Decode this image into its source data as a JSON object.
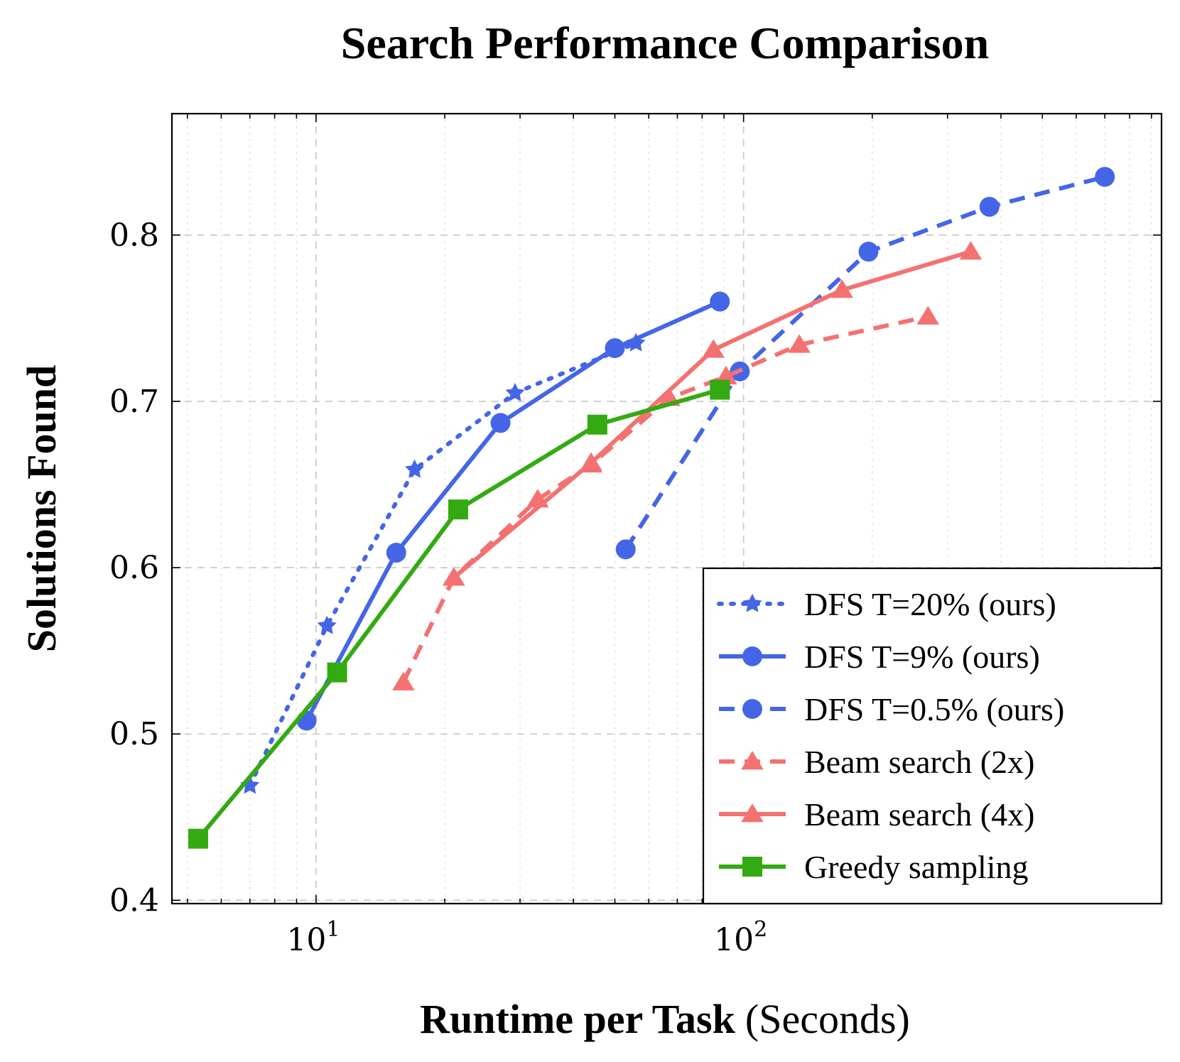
{
  "chart_data": {
    "type": "line",
    "title": "Search Performance Comparison",
    "xlabel_bold": "Runtime per Task",
    "xlabel_normal": "(Seconds)",
    "ylabel": "Solutions Found",
    "x_scale": "log",
    "xlim": [
      4.6,
      950
    ],
    "ylim": [
      0.398,
      0.873
    ],
    "x_ticks": [
      {
        "value": 10,
        "base": "10",
        "exp": "1"
      },
      {
        "value": 100,
        "base": "10",
        "exp": "2"
      }
    ],
    "y_ticks": [
      {
        "value": 0.4,
        "label": "0.4"
      },
      {
        "value": 0.5,
        "label": "0.5"
      },
      {
        "value": 0.6,
        "label": "0.6"
      },
      {
        "value": 0.7,
        "label": "0.7"
      },
      {
        "value": 0.8,
        "label": "0.8"
      }
    ],
    "grid": true,
    "legend_position": "bottom-right",
    "series": [
      {
        "name": "DFS T=20% (ours)",
        "color": "#4466e6",
        "line": "dotted",
        "marker": "star",
        "x": [
          7.0,
          10.6,
          17.0,
          29.2,
          56.0
        ],
        "y": [
          0.469,
          0.565,
          0.659,
          0.705,
          0.735
        ]
      },
      {
        "name": "DFS T=9% (ours)",
        "color": "#4466e6",
        "line": "solid",
        "marker": "circle",
        "x": [
          9.5,
          15.4,
          27.0,
          50.0,
          88.0
        ],
        "y": [
          0.508,
          0.609,
          0.687,
          0.732,
          0.76
        ]
      },
      {
        "name": "DFS T=0.5% (ours)",
        "color": "#4466e6",
        "line": "dashed",
        "marker": "circle",
        "x": [
          53.0,
          98.0,
          196.0,
          376.0,
          700.0
        ],
        "y": [
          0.611,
          0.718,
          0.79,
          0.817,
          0.835
        ]
      },
      {
        "name": "Beam search (2x)",
        "color": "#f47171",
        "line": "dashed",
        "marker": "triangle",
        "x": [
          16.0,
          21.0,
          33.0,
          44.0,
          67.0,
          91.0,
          135.0,
          270.0
        ],
        "y": [
          0.531,
          0.594,
          0.641,
          0.662,
          0.702,
          0.715,
          0.734,
          0.751
        ]
      },
      {
        "name": "Beam search (4x)",
        "color": "#f47171",
        "line": "solid",
        "marker": "triangle",
        "x": [
          21.0,
          44.0,
          85.0,
          170.0,
          340.0
        ],
        "y": [
          0.594,
          0.663,
          0.731,
          0.767,
          0.79
        ]
      },
      {
        "name": "Greedy sampling",
        "color": "#33aa11",
        "line": "solid",
        "marker": "square",
        "x": [
          5.3,
          11.2,
          21.5,
          45.5,
          88.0
        ],
        "y": [
          0.437,
          0.537,
          0.635,
          0.686,
          0.707
        ]
      }
    ]
  }
}
